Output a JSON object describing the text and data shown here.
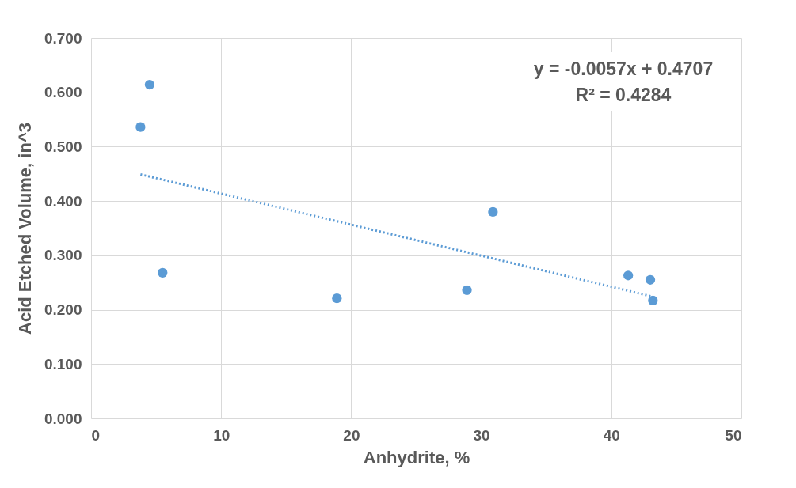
{
  "chart_data": {
    "type": "scatter",
    "xlabel": "Anhydrite, %",
    "ylabel": "Acid Etched Volume, in^3",
    "xlim": [
      0,
      50
    ],
    "xticks": [
      0,
      10,
      20,
      30,
      40,
      50
    ],
    "ylim": [
      0,
      0.7
    ],
    "yticks": [
      {
        "value": 0,
        "label": "0.000"
      },
      {
        "value": 0.1,
        "label": "0.100"
      },
      {
        "value": 0.2,
        "label": "0.200"
      },
      {
        "value": 0.3,
        "label": "0.300"
      },
      {
        "value": 0.4,
        "label": "0.400"
      },
      {
        "value": 0.5,
        "label": "0.500"
      },
      {
        "value": 0.6,
        "label": "0.600"
      },
      {
        "value": 0.7,
        "label": "0.700"
      }
    ],
    "grid": true,
    "annotations": [
      "y = -0.0057x + 0.4707",
      "R² = 0.4284"
    ],
    "series": [
      {
        "marker": "circle",
        "color": "#5b9bd5",
        "x": [
          4.5,
          3.8,
          5.5,
          18.9,
          28.9,
          30.9,
          41.3,
          43.0,
          43.2
        ],
        "values": [
          0.614,
          0.536,
          0.268,
          0.221,
          0.236,
          0.38,
          0.263,
          0.255,
          0.217
        ]
      },
      {
        "type": "line",
        "color": "#5b9bd5",
        "line_style": "dotted",
        "x": [
          3.8,
          43.2
        ],
        "values": [
          0.449,
          0.224
        ]
      }
    ]
  }
}
